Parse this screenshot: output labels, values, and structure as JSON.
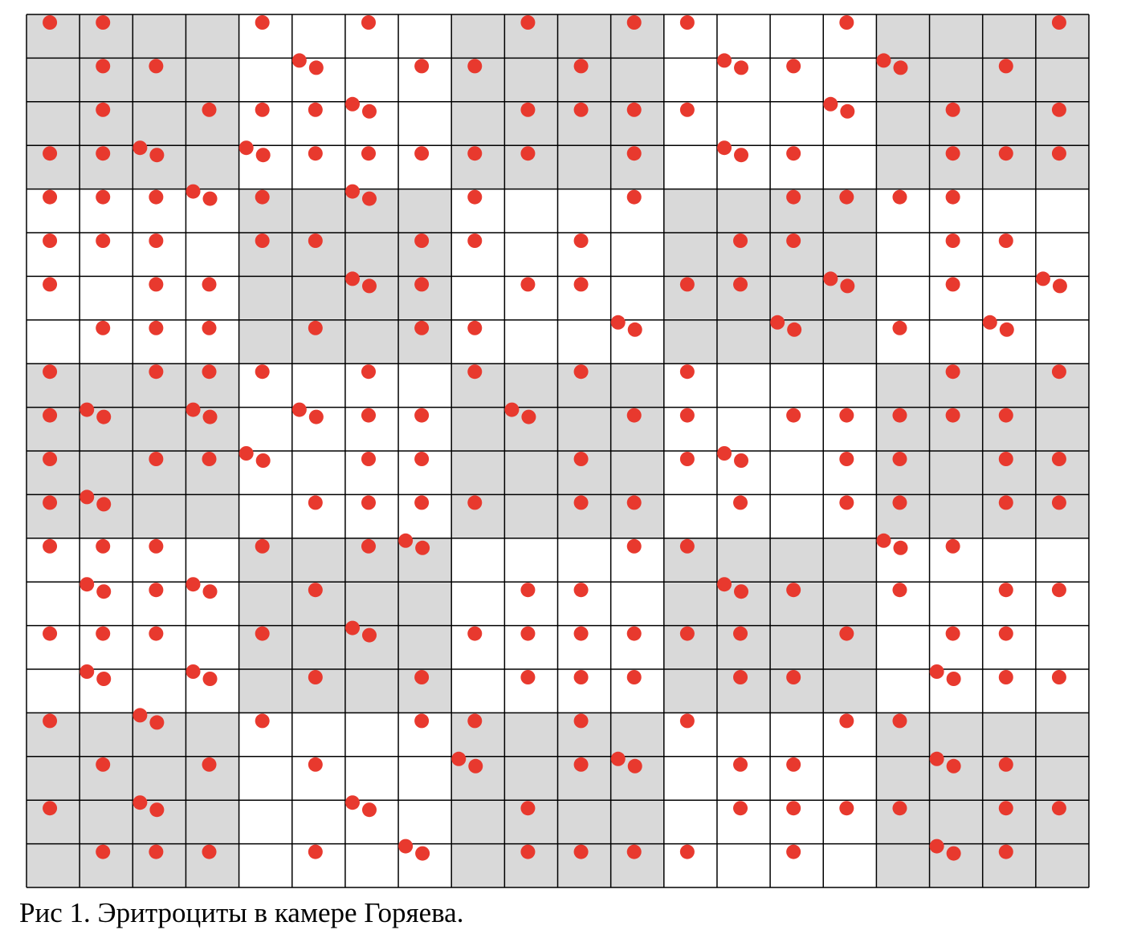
{
  "caption": "Рис 1. Эритроциты в камере Горяева.",
  "colors": {
    "shaded_cell": "#d9d9d9",
    "unshaded_cell": "#ffffff",
    "grid_line": "#000000",
    "cell_dot": "#e8392e"
  },
  "grid": {
    "columns": 20,
    "rows": 20,
    "shaded_blocks": [
      [
        1,
        0,
        1,
        0,
        1
      ],
      [
        0,
        1,
        0,
        1,
        0
      ],
      [
        1,
        0,
        1,
        0,
        1
      ],
      [
        0,
        1,
        0,
        1,
        0
      ],
      [
        1,
        0,
        1,
        0,
        1
      ]
    ]
  },
  "cells_per_square": [
    [
      1,
      1,
      0,
      0,
      1,
      0,
      1,
      0,
      0,
      1,
      0,
      1,
      1,
      0,
      0,
      1,
      0,
      0,
      0,
      1
    ],
    [
      0,
      1,
      1,
      0,
      0,
      2,
      0,
      1,
      1,
      0,
      1,
      0,
      0,
      2,
      1,
      0,
      2,
      0,
      1,
      0
    ],
    [
      0,
      1,
      0,
      1,
      1,
      1,
      2,
      0,
      0,
      1,
      1,
      1,
      1,
      0,
      0,
      2,
      0,
      1,
      0,
      1
    ],
    [
      1,
      1,
      2,
      0,
      2,
      1,
      1,
      1,
      1,
      1,
      0,
      1,
      0,
      2,
      1,
      0,
      0,
      1,
      1,
      1
    ],
    [
      1,
      1,
      1,
      2,
      1,
      0,
      2,
      0,
      1,
      0,
      0,
      1,
      0,
      0,
      1,
      1,
      1,
      1,
      0,
      0
    ],
    [
      1,
      1,
      1,
      0,
      1,
      1,
      0,
      1,
      1,
      0,
      1,
      0,
      0,
      1,
      1,
      0,
      0,
      1,
      1,
      0
    ],
    [
      1,
      0,
      1,
      1,
      0,
      0,
      2,
      1,
      0,
      1,
      1,
      0,
      1,
      1,
      0,
      2,
      0,
      1,
      0,
      2
    ],
    [
      0,
      1,
      1,
      1,
      0,
      1,
      0,
      1,
      1,
      0,
      0,
      2,
      0,
      0,
      2,
      0,
      1,
      0,
      2,
      0
    ],
    [
      1,
      0,
      1,
      1,
      1,
      0,
      1,
      0,
      1,
      0,
      1,
      0,
      1,
      0,
      0,
      0,
      0,
      1,
      0,
      1
    ],
    [
      1,
      2,
      0,
      2,
      0,
      2,
      1,
      1,
      0,
      2,
      0,
      1,
      1,
      0,
      1,
      1,
      1,
      1,
      1,
      0
    ],
    [
      1,
      0,
      1,
      1,
      2,
      0,
      1,
      1,
      0,
      0,
      1,
      0,
      1,
      2,
      0,
      1,
      1,
      0,
      1,
      1
    ],
    [
      1,
      2,
      0,
      0,
      0,
      1,
      1,
      1,
      1,
      0,
      1,
      1,
      0,
      1,
      0,
      1,
      1,
      0,
      1,
      1
    ],
    [
      1,
      1,
      1,
      0,
      1,
      0,
      1,
      2,
      0,
      0,
      0,
      1,
      1,
      0,
      0,
      0,
      2,
      1,
      0,
      0
    ],
    [
      0,
      2,
      1,
      2,
      0,
      1,
      0,
      0,
      0,
      1,
      1,
      0,
      0,
      2,
      1,
      0,
      1,
      0,
      1,
      1
    ],
    [
      1,
      1,
      1,
      0,
      1,
      0,
      2,
      0,
      1,
      1,
      1,
      1,
      1,
      1,
      0,
      1,
      0,
      1,
      1,
      0
    ],
    [
      0,
      2,
      0,
      2,
      0,
      1,
      0,
      1,
      0,
      1,
      1,
      1,
      0,
      1,
      1,
      0,
      0,
      2,
      1,
      1
    ],
    [
      1,
      0,
      2,
      0,
      1,
      0,
      0,
      1,
      1,
      0,
      1,
      0,
      1,
      0,
      0,
      1,
      1,
      0,
      0,
      0
    ],
    [
      0,
      1,
      0,
      1,
      0,
      1,
      0,
      0,
      2,
      0,
      1,
      2,
      0,
      1,
      1,
      0,
      0,
      2,
      1,
      0
    ],
    [
      1,
      0,
      2,
      0,
      0,
      0,
      2,
      0,
      0,
      1,
      0,
      0,
      0,
      1,
      1,
      1,
      1,
      0,
      1,
      1
    ],
    [
      0,
      1,
      1,
      1,
      0,
      1,
      0,
      2,
      0,
      1,
      1,
      1,
      1,
      0,
      1,
      0,
      0,
      2,
      1,
      0
    ]
  ]
}
